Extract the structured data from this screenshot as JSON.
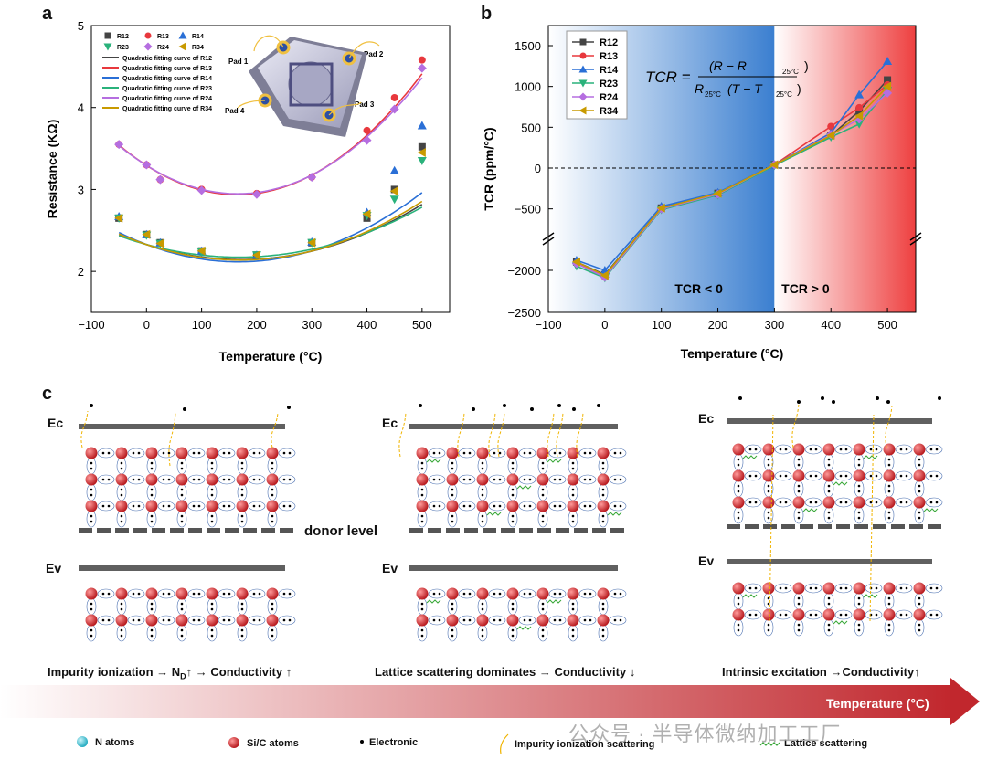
{
  "panel_labels": {
    "a": "a",
    "b": "b",
    "c": "c"
  },
  "chart_data": [
    {
      "type": "scatter",
      "id": "a",
      "xlabel": "Temperature (°C)",
      "ylabel": "Resistance (KΩ)",
      "xlim": [
        -100,
        550
      ],
      "ylim": [
        1.5,
        5
      ],
      "xticks": [
        -100,
        0,
        100,
        200,
        300,
        400,
        500
      ],
      "yticks": [
        2,
        3,
        4,
        5
      ],
      "x": [
        -50,
        0,
        25,
        100,
        200,
        300,
        400,
        450,
        500
      ],
      "series": [
        {
          "name": "R12",
          "color": "#444444",
          "marker": "square",
          "values": [
            2.65,
            2.45,
            2.35,
            2.25,
            2.2,
            2.35,
            2.65,
            3.0,
            3.52
          ]
        },
        {
          "name": "R13",
          "color": "#e8383d",
          "marker": "circle",
          "values": [
            3.55,
            3.3,
            3.12,
            3.0,
            2.95,
            3.15,
            3.72,
            4.12,
            4.58
          ]
        },
        {
          "name": "R14",
          "color": "#2a6fd6",
          "marker": "triangle",
          "values": [
            2.67,
            2.45,
            2.35,
            2.25,
            2.2,
            2.36,
            2.72,
            3.23,
            3.78
          ]
        },
        {
          "name": "R23",
          "color": "#2ab27b",
          "marker": "triangle-down",
          "values": [
            2.65,
            2.44,
            2.34,
            2.24,
            2.2,
            2.35,
            2.68,
            2.88,
            3.35
          ]
        },
        {
          "name": "R24",
          "color": "#b56ee0",
          "marker": "diamond",
          "values": [
            3.55,
            3.3,
            3.12,
            2.99,
            2.94,
            3.15,
            3.6,
            3.98,
            4.48
          ]
        },
        {
          "name": "R34",
          "color": "#c89a00",
          "marker": "triangle-left",
          "values": [
            2.65,
            2.45,
            2.34,
            2.25,
            2.2,
            2.35,
            2.7,
            2.98,
            3.45
          ]
        }
      ],
      "fits": [
        {
          "name": "Quadratic fitting curve of R12",
          "color": "#444444",
          "coef": [
            2.3285,
            -0.0021452,
            6.2475e-06
          ]
        },
        {
          "name": "Quadratic fitting curve of R13",
          "color": "#e8383d",
          "coef": [
            3.2934,
            -0.0043338,
            1.3138e-05
          ]
        },
        {
          "name": "Quadratic fitting curve of R14",
          "color": "#2a6fd6",
          "coef": [
            2.3285,
            -0.0025404,
            7.6104e-06
          ]
        },
        {
          "name": "Quadratic fitting curve of R23",
          "color": "#2ab27b",
          "coef": [
            2.3285,
            -0.0018481,
            5.5164e-06
          ]
        },
        {
          "name": "Quadratic fitting curve of R24",
          "color": "#b56ee0",
          "coef": [
            3.2934,
            -0.0041854,
            1.2648e-05
          ]
        },
        {
          "name": "Quadratic fitting curve of R34",
          "color": "#c89a00",
          "coef": [
            2.3285,
            -0.0022387,
            6.5803e-06
          ]
        }
      ],
      "inset_labels": [
        "Pad 1",
        "Pad 2",
        "Pad 3",
        "Pad 4"
      ]
    },
    {
      "type": "line",
      "id": "b",
      "xlabel": "Temperature (°C)",
      "ylabel": "TCR (ppm/°C)",
      "xlim": [
        -100,
        550
      ],
      "ylim": [
        -2500,
        1700
      ],
      "xticks": [
        -100,
        0,
        100,
        200,
        300,
        400,
        500
      ],
      "yticks": [
        -2500,
        -2000,
        -500,
        0,
        500,
        1000,
        1500
      ],
      "x": [
        -50,
        0,
        100,
        200,
        300,
        400,
        450,
        500
      ],
      "series": [
        {
          "name": "R12",
          "color": "#444444",
          "marker": "square",
          "values": [
            -1900,
            -2050,
            -490,
            -310,
            40,
            400,
            700,
            1080
          ]
        },
        {
          "name": "R13",
          "color": "#e8383d",
          "marker": "circle",
          "values": [
            -1910,
            -2080,
            -500,
            -320,
            40,
            510,
            740,
            1020
          ]
        },
        {
          "name": "R14",
          "color": "#2a6fd6",
          "marker": "triangle",
          "values": [
            -1880,
            -2000,
            -470,
            -300,
            40,
            430,
            900,
            1310
          ]
        },
        {
          "name": "R23",
          "color": "#2ab27b",
          "marker": "triangle-down",
          "values": [
            -1950,
            -2090,
            -510,
            -330,
            30,
            380,
            540,
            950
          ]
        },
        {
          "name": "R24",
          "color": "#b56ee0",
          "marker": "diamond",
          "values": [
            -1920,
            -2080,
            -500,
            -320,
            40,
            410,
            600,
            920
          ]
        },
        {
          "name": "R34",
          "color": "#c89a00",
          "marker": "triangle-left",
          "values": [
            -1900,
            -2060,
            -490,
            -310,
            40,
            400,
            640,
            1000
          ]
        }
      ],
      "region_labels": [
        "TCR < 0",
        "TCR > 0"
      ],
      "formula": {
        "lhs": "TCR =",
        "numerator": "(R − R",
        "num_sub": "25°C",
        "num_close": ")",
        "denominator": "R",
        "den_sub": "25°C",
        "den_rest": "(T − T",
        "den_sub2": "25°C",
        "den_close": ")"
      }
    }
  ],
  "panel_c": {
    "ec": "Ec",
    "ev": "Ev",
    "donor": "donor level",
    "captions": [
      "Impurity ionization → N",
      "D",
      "↑ → Conductivity ↑",
      "Lattice scattering dominates → Conductivity ↓",
      "Intrinsic excitation →Conductivity↑"
    ],
    "arrow_label": "Temperature (°C)",
    "legend": [
      "N atoms",
      "Si/C atoms",
      "Electronic",
      "Impurity ionization scattering",
      "Lattice scattering"
    ],
    "watermark": "公众号 · 半导体微纳加工工厂",
    "colors": {
      "n": "#29b7c9",
      "sic": "#d8262b",
      "arrow": "#c1272d"
    }
  }
}
